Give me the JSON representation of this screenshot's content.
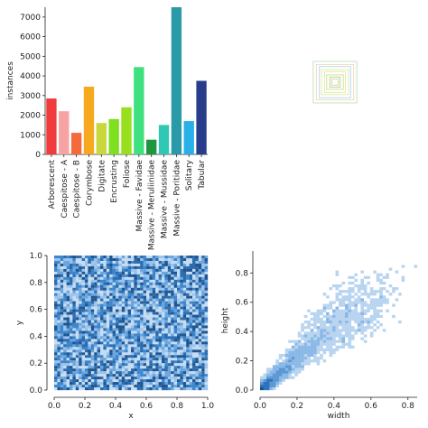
{
  "chart_data": [
    {
      "type": "bar",
      "ylabel": "instances",
      "ylim": [
        0,
        7500
      ],
      "yticks": [
        0,
        1000,
        2000,
        3000,
        4000,
        5000,
        6000,
        7000
      ],
      "categories": [
        "Arborescent",
        "Caespitose - A",
        "Caespitose - B",
        "Corymbose",
        "Digitate",
        "Encrusting",
        "Foliose",
        "Massive - Favidae",
        "Massive - Meruliinidae",
        "Massive - Mussidae",
        "Massive - Poritidae",
        "Solitary",
        "Tabular"
      ],
      "values": [
        2850,
        2200,
        1100,
        3450,
        1600,
        1800,
        2400,
        4450,
        750,
        1500,
        7500,
        1700,
        3750
      ],
      "colors": [
        "#f03c3c",
        "#f8a3a3",
        "#f46a3a",
        "#f6a81e",
        "#c8d83c",
        "#7ee01e",
        "#98e01e",
        "#3ee080",
        "#1e9640",
        "#2ec8b4",
        "#2a9aa8",
        "#2ab0e8",
        "#283c8c"
      ]
    },
    {
      "type": "scatter",
      "description_type": "box-overlay",
      "boxes": [
        {
          "w": 0.42,
          "h": 0.4,
          "color": "#a8d8a8"
        },
        {
          "w": 0.36,
          "h": 0.34,
          "color": "#f2c8a0"
        },
        {
          "w": 0.3,
          "h": 0.3,
          "color": "#98c8e8"
        },
        {
          "w": 0.26,
          "h": 0.24,
          "color": "#c8e898"
        },
        {
          "w": 0.2,
          "h": 0.2,
          "color": "#e8e070"
        },
        {
          "w": 0.16,
          "h": 0.14,
          "color": "#b8d870"
        },
        {
          "w": 0.1,
          "h": 0.1,
          "color": "#8cc870"
        },
        {
          "w": 0.06,
          "h": 0.06,
          "color": "#d8c070"
        }
      ]
    },
    {
      "type": "heatmap",
      "xlabel": "x",
      "ylabel": "y",
      "xlim": [
        0,
        1
      ],
      "ylim": [
        0,
        1
      ],
      "xticks": [
        0.0,
        0.2,
        0.4,
        0.6,
        0.8,
        1.0
      ],
      "yticks": [
        0.0,
        0.2,
        0.4,
        0.6,
        0.8,
        1.0
      ],
      "bins": 50
    },
    {
      "type": "heatmap",
      "xlabel": "width",
      "ylabel": "height",
      "xlim": [
        0,
        0.85
      ],
      "ylim": [
        0,
        0.95
      ],
      "xticks": [
        0.0,
        0.2,
        0.4,
        0.6,
        0.8
      ],
      "yticks": [
        0.0,
        0.2,
        0.4,
        0.6,
        0.8
      ],
      "bins": 50
    }
  ]
}
